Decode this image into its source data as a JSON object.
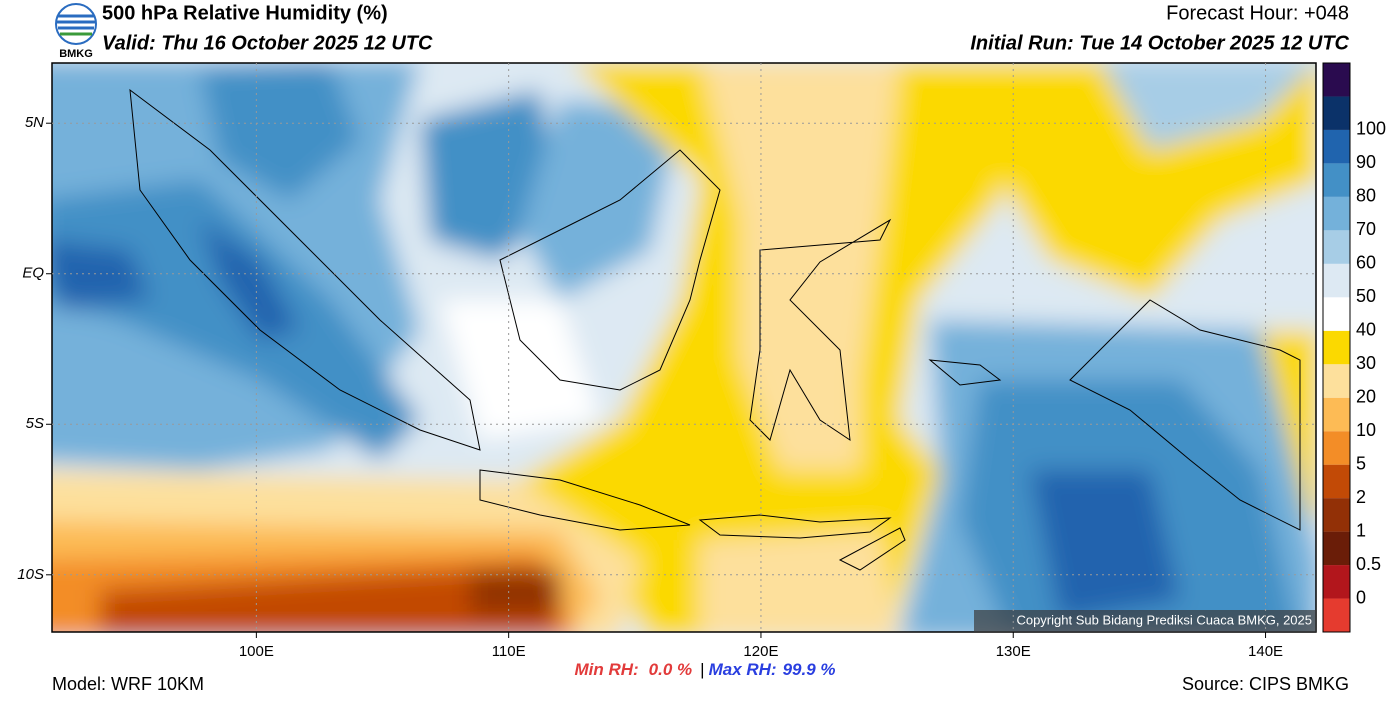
{
  "header": {
    "logo_text": "BMKG",
    "title": "500 hPa Relative Humidity (%)",
    "valid": "Valid: Thu 16 October 2025 12 UTC",
    "forecast_hour": "Forecast Hour: +048",
    "initial_run": "Initial Run: Tue 14 October 2025 12 UTC"
  },
  "map": {
    "xlim": [
      91.9,
      142.0
    ],
    "ylim": [
      -11.9,
      7.0
    ],
    "xticks": [
      {
        "value": 100,
        "label": "100E"
      },
      {
        "value": 110,
        "label": "110E"
      },
      {
        "value": 120,
        "label": "120E"
      },
      {
        "value": 130,
        "label": "130E"
      },
      {
        "value": 140,
        "label": "140E"
      }
    ],
    "yticks": [
      {
        "value": 5,
        "label": "5N"
      },
      {
        "value": 0,
        "label": "EQ"
      },
      {
        "value": -5,
        "label": "5S"
      },
      {
        "value": -10,
        "label": "10S"
      }
    ],
    "grid": true,
    "copyright": "Copyright Sub Bidang Prediksi Cuaca BMKG, 2025"
  },
  "colorbar": {
    "levels": [
      0,
      0.5,
      1,
      2,
      5,
      10,
      20,
      30,
      40,
      50,
      60,
      70,
      80,
      90,
      100
    ],
    "colors": [
      "#e53b2f",
      "#b2161c",
      "#6a1d08",
      "#923006",
      "#c24a06",
      "#f38d27",
      "#fdbb55",
      "#fde09c",
      "#fbd900",
      "#ffffff",
      "#dde9f3",
      "#a7cde6",
      "#74b1da",
      "#4390c6",
      "#2064ae",
      "#0b3269",
      "#2a0b4f"
    ]
  },
  "stats": {
    "min_label": "Min RH:",
    "min_value": "0.0 %",
    "separator": "|",
    "max_label": "Max RH:",
    "max_value": "99.9 %"
  },
  "footer": {
    "model": "Model: WRF 10KM",
    "source": "Source: CIPS BMKG"
  }
}
